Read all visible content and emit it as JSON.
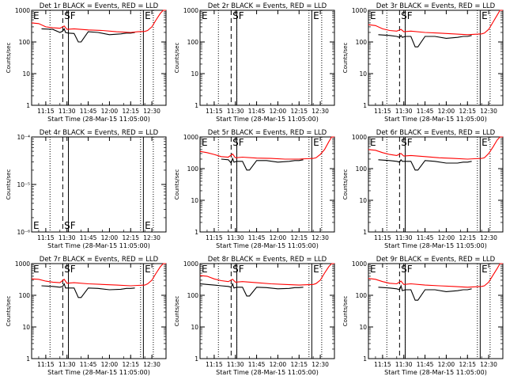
{
  "figure": {
    "xlabel": "Start Time (28-Mar-15 11:05:00)",
    "ylabel": "Counts/sec",
    "xticks": [
      "11:15",
      "11:30",
      "11:45",
      "12:00",
      "12:15",
      "12:30"
    ],
    "ylog_ticks": [
      "1",
      "10",
      "100",
      "1000"
    ],
    "colors": {
      "events": "#000000",
      "lld": "#ff0000",
      "background": "#ffffff"
    }
  },
  "chart_data": [
    {
      "type": "line",
      "title": "Det 1r BLACK = Events, RED = LLD",
      "xlabel": "Start Time (28-Mar-15 11:05:00)",
      "ylabel": "Counts/sec",
      "yscale": "log",
      "ylim": [
        1,
        1000
      ],
      "xlim": [
        "11:05",
        "12:40"
      ],
      "markers": [
        "E",
        "SF",
        "E"
      ],
      "has_data": true,
      "series": [
        {
          "color": "#000000",
          "x": [
            "11:12",
            "11:20",
            "11:25",
            "11:27",
            "11:28",
            "11:29",
            "11:31",
            "11:35",
            "11:38",
            "11:40",
            "11:45",
            "11:52",
            "12:00",
            "12:08",
            "12:12",
            "12:15",
            "12:18"
          ],
          "y": [
            260,
            250,
            200,
            220,
            260,
            200,
            190,
            185,
            100,
            100,
            210,
            200,
            170,
            180,
            190,
            190,
            200
          ]
        },
        {
          "color": "#ff0000",
          "x": [
            "11:05",
            "11:10",
            "11:15",
            "11:20",
            "11:25",
            "11:28",
            "11:30",
            "11:35",
            "11:45",
            "11:55",
            "12:05",
            "12:15",
            "12:20",
            "12:25",
            "12:27",
            "12:30",
            "12:33",
            "12:36",
            "12:38",
            "12:40"
          ],
          "y": [
            400,
            380,
            300,
            280,
            270,
            320,
            250,
            260,
            240,
            230,
            210,
            200,
            210,
            215,
            230,
            300,
            500,
            800,
            1000,
            1000
          ]
        }
      ]
    },
    {
      "type": "line",
      "title": "Det 2r BLACK = Events, RED = LLD",
      "xlabel": "Start Time (28-Mar-15 11:05:00)",
      "ylabel": "Counts/sec",
      "yscale": "log",
      "ylim": [
        1,
        1000
      ],
      "xlim": [
        "11:05",
        "12:40"
      ],
      "markers": [
        "E",
        "SF",
        "E"
      ],
      "has_data": false,
      "series": []
    },
    {
      "type": "line",
      "title": "Det 3r BLACK = Events, RED = LLD",
      "xlabel": "Start Time (28-Mar-15 11:05:00)",
      "ylabel": "Counts/sec",
      "yscale": "log",
      "ylim": [
        1,
        1000
      ],
      "xlim": [
        "11:05",
        "12:40"
      ],
      "markers": [
        "E",
        "SF",
        "E"
      ],
      "has_data": true,
      "series": [
        {
          "color": "#000000",
          "x": [
            "11:12",
            "11:20",
            "11:25",
            "11:27",
            "11:28",
            "11:29",
            "11:31",
            "11:35",
            "11:38",
            "11:40",
            "11:45",
            "11:52",
            "12:00",
            "12:08",
            "12:12",
            "12:15",
            "12:18"
          ],
          "y": [
            170,
            160,
            150,
            140,
            160,
            140,
            150,
            150,
            70,
            70,
            150,
            150,
            130,
            140,
            150,
            150,
            160
          ]
        },
        {
          "color": "#ff0000",
          "x": [
            "11:05",
            "11:10",
            "11:15",
            "11:20",
            "11:25",
            "11:28",
            "11:30",
            "11:35",
            "11:45",
            "11:55",
            "12:05",
            "12:15",
            "12:20",
            "12:25",
            "12:27",
            "12:30",
            "12:33",
            "12:36",
            "12:38",
            "12:40"
          ],
          "y": [
            350,
            330,
            260,
            230,
            220,
            250,
            210,
            220,
            200,
            190,
            180,
            170,
            175,
            180,
            190,
            250,
            420,
            700,
            1000,
            1000
          ]
        }
      ]
    },
    {
      "type": "line",
      "title": "Det 4r BLACK = Events, RED = LLD",
      "xlabel": "Start Time (28-Mar-15 11:05:00)",
      "ylabel": "Counts/sec",
      "yscale": "log",
      "ylim": [
        1e-06,
        0.0001
      ],
      "xlim": [
        "11:05",
        "12:40"
      ],
      "markers": [
        "E",
        "SF",
        "E"
      ],
      "has_data": false,
      "series": []
    },
    {
      "type": "line",
      "title": "Det 5r BLACK = Events, RED = LLD",
      "xlabel": "Start Time (28-Mar-15 11:05:00)",
      "ylabel": "Counts/sec",
      "yscale": "log",
      "ylim": [
        1,
        1000
      ],
      "xlim": [
        "11:05",
        "12:40"
      ],
      "markers": [
        "E",
        "SF",
        "E"
      ],
      "has_data": true,
      "series": [
        {
          "color": "#000000",
          "x": [
            "11:20",
            "11:25",
            "11:27",
            "11:28",
            "11:29",
            "11:31",
            "11:35",
            "11:38",
            "11:40",
            "11:45",
            "11:52",
            "12:00",
            "12:08",
            "12:12",
            "12:15",
            "12:18"
          ],
          "y": [
            200,
            190,
            150,
            210,
            160,
            170,
            170,
            90,
            90,
            180,
            180,
            160,
            170,
            180,
            180,
            190
          ]
        },
        {
          "color": "#ff0000",
          "x": [
            "11:05",
            "11:10",
            "11:15",
            "11:20",
            "11:25",
            "11:28",
            "11:30",
            "11:35",
            "11:45",
            "11:55",
            "12:05",
            "12:15",
            "12:20",
            "12:25",
            "12:27",
            "12:30",
            "12:33",
            "12:36",
            "12:38",
            "12:40"
          ],
          "y": [
            350,
            320,
            280,
            240,
            230,
            290,
            220,
            230,
            215,
            210,
            200,
            200,
            205,
            210,
            220,
            280,
            400,
            700,
            1000,
            1000
          ]
        }
      ]
    },
    {
      "type": "line",
      "title": "Det 6r BLACK = Events, RED = LLD",
      "xlabel": "Start Time (28-Mar-15 11:05:00)",
      "ylabel": "Counts/sec",
      "yscale": "log",
      "ylim": [
        1,
        1000
      ],
      "xlim": [
        "11:05",
        "12:40"
      ],
      "markers": [
        "E",
        "SF",
        "E"
      ],
      "has_data": true,
      "series": [
        {
          "color": "#000000",
          "x": [
            "11:12",
            "11:20",
            "11:25",
            "11:27",
            "11:28",
            "11:29",
            "11:31",
            "11:35",
            "11:38",
            "11:40",
            "11:45",
            "11:52",
            "12:00",
            "12:08",
            "12:12",
            "12:15",
            "12:18"
          ],
          "y": [
            190,
            180,
            170,
            160,
            190,
            170,
            170,
            170,
            90,
            90,
            180,
            170,
            150,
            150,
            160,
            160,
            170
          ]
        },
        {
          "color": "#ff0000",
          "x": [
            "11:05",
            "11:10",
            "11:15",
            "11:20",
            "11:25",
            "11:28",
            "11:30",
            "11:35",
            "11:45",
            "11:55",
            "12:05",
            "12:15",
            "12:20",
            "12:25",
            "12:27",
            "12:30",
            "12:33",
            "12:36",
            "12:38",
            "12:40"
          ],
          "y": [
            400,
            380,
            320,
            280,
            260,
            300,
            250,
            260,
            240,
            220,
            210,
            200,
            205,
            210,
            220,
            300,
            480,
            800,
            1000,
            1000
          ]
        }
      ]
    },
    {
      "type": "line",
      "title": "Det 7r BLACK = Events, RED = LLD",
      "xlabel": "Start Time (28-Mar-15 11:05:00)",
      "ylabel": "Counts/sec",
      "yscale": "log",
      "ylim": [
        1,
        1000
      ],
      "xlim": [
        "11:05",
        "12:40"
      ],
      "markers": [
        "E",
        "SF",
        "E"
      ],
      "has_data": true,
      "series": [
        {
          "color": "#000000",
          "x": [
            "11:12",
            "11:20",
            "11:25",
            "11:27",
            "11:28",
            "11:29",
            "11:31",
            "11:35",
            "11:38",
            "11:40",
            "11:45",
            "11:52",
            "12:00",
            "12:08",
            "12:12",
            "12:15",
            "12:18"
          ],
          "y": [
            200,
            190,
            180,
            190,
            230,
            170,
            170,
            170,
            85,
            85,
            170,
            165,
            150,
            155,
            165,
            165,
            170
          ]
        },
        {
          "color": "#ff0000",
          "x": [
            "11:05",
            "11:10",
            "11:15",
            "11:20",
            "11:25",
            "11:28",
            "11:30",
            "11:35",
            "11:45",
            "11:55",
            "12:05",
            "12:15",
            "12:20",
            "12:25",
            "12:27",
            "12:30",
            "12:33",
            "12:36",
            "12:38",
            "12:40"
          ],
          "y": [
            330,
            320,
            280,
            260,
            250,
            320,
            240,
            250,
            230,
            220,
            210,
            200,
            205,
            210,
            230,
            300,
            500,
            800,
            1000,
            1000
          ]
        }
      ]
    },
    {
      "type": "line",
      "title": "Det 8r BLACK = Events, RED = LLD",
      "xlabel": "Start Time (28-Mar-15 11:05:00)",
      "ylabel": "Counts/sec",
      "yscale": "log",
      "ylim": [
        1,
        1000
      ],
      "xlim": [
        "11:05",
        "12:40"
      ],
      "markers": [
        "E",
        "SF",
        "E"
      ],
      "has_data": true,
      "series": [
        {
          "color": "#000000",
          "x": [
            "11:05",
            "11:10",
            "11:15",
            "11:20",
            "11:25",
            "11:27",
            "11:28",
            "11:29",
            "11:31",
            "11:35",
            "11:38",
            "11:40",
            "11:45",
            "11:52",
            "12:00",
            "12:08",
            "12:12",
            "12:15",
            "12:18"
          ],
          "y": [
            230,
            220,
            210,
            200,
            190,
            180,
            230,
            170,
            180,
            180,
            95,
            95,
            180,
            175,
            160,
            165,
            175,
            175,
            180
          ]
        },
        {
          "color": "#ff0000",
          "x": [
            "11:05",
            "11:10",
            "11:15",
            "11:20",
            "11:25",
            "11:28",
            "11:30",
            "11:35",
            "11:45",
            "11:55",
            "12:05",
            "12:15",
            "12:20",
            "12:25",
            "12:27",
            "12:30",
            "12:33",
            "12:36",
            "12:38",
            "12:40"
          ],
          "y": [
            420,
            400,
            330,
            290,
            270,
            320,
            260,
            270,
            250,
            230,
            220,
            210,
            215,
            220,
            235,
            300,
            500,
            800,
            1000,
            1000
          ]
        }
      ]
    },
    {
      "type": "line",
      "title": "Det 9r BLACK = Events, RED = LLD",
      "xlabel": "Start Time (28-Mar-15 11:05:00)",
      "ylabel": "Counts/sec",
      "yscale": "log",
      "ylim": [
        1,
        1000
      ],
      "xlim": [
        "11:05",
        "12:40"
      ],
      "markers": [
        "E",
        "SF",
        "E"
      ],
      "has_data": true,
      "series": [
        {
          "color": "#000000",
          "x": [
            "11:12",
            "11:20",
            "11:25",
            "11:27",
            "11:28",
            "11:29",
            "11:31",
            "11:35",
            "11:38",
            "11:40",
            "11:45",
            "11:52",
            "12:00",
            "12:08",
            "12:12",
            "12:15",
            "12:18"
          ],
          "y": [
            180,
            170,
            160,
            150,
            200,
            140,
            150,
            150,
            70,
            70,
            150,
            150,
            130,
            140,
            150,
            150,
            160
          ]
        },
        {
          "color": "#ff0000",
          "x": [
            "11:05",
            "11:10",
            "11:15",
            "11:20",
            "11:25",
            "11:28",
            "11:30",
            "11:35",
            "11:45",
            "11:55",
            "12:05",
            "12:15",
            "12:20",
            "12:25",
            "12:27",
            "12:30",
            "12:33",
            "12:36",
            "12:38",
            "12:40"
          ],
          "y": [
            340,
            320,
            270,
            240,
            230,
            280,
            220,
            230,
            210,
            200,
            190,
            180,
            185,
            190,
            200,
            260,
            430,
            700,
            1000,
            1000
          ]
        }
      ]
    }
  ]
}
